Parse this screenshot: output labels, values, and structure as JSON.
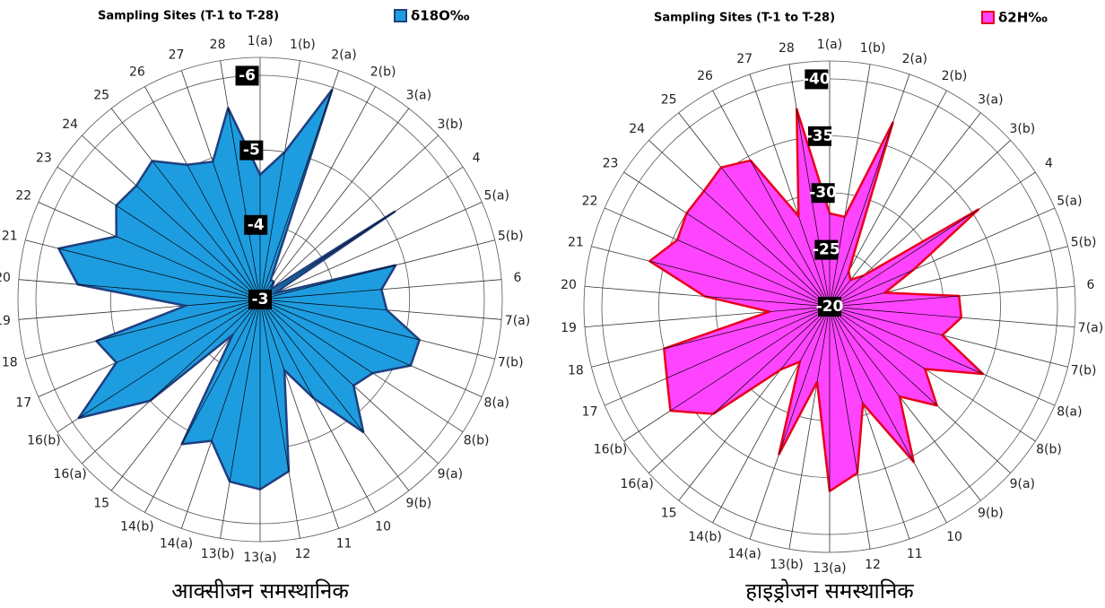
{
  "chart_data": [
    {
      "type": "radar",
      "title": "Sampling Sites (T-1 to T-28)",
      "caption": "आक्सीजन समस्थानिक",
      "categories": [
        "1(a)",
        "1(b)",
        "2(a)",
        "2(b)",
        "3(a)",
        "3(b)",
        "4",
        "5(a)",
        "5(b)",
        "6",
        "7(a)",
        "7(b)",
        "8(a)",
        "8(b)",
        "9(a)",
        "9(b)",
        "10",
        "11",
        "12",
        "13(a)",
        "13(b)",
        "14(a)",
        "14(b)",
        "15",
        "16(a)",
        "16(b)",
        "17",
        "18",
        "19",
        "20",
        "21",
        "22",
        "23",
        "24",
        "25",
        "26",
        "27",
        "28"
      ],
      "series": [
        {
          "name": "δ18O‰",
          "color": "#1e9ce0",
          "stroke": "#1f3f7f",
          "values": [
            -4.67,
            -5.0,
            -5.97,
            -3.3,
            -3.3,
            -3.2,
            -5.15,
            -3.2,
            -4.87,
            -4.63,
            -4.7,
            -5.2,
            -5.2,
            -4.8,
            -4.7,
            -5.25,
            -4.5,
            -4.0,
            -5.33,
            -5.54,
            -5.47,
            -5.0,
            -5.2,
            -3.6,
            -5.0,
            -5.9,
            -5.1,
            -5.26,
            -4.0,
            -5.45,
            -5.78,
            -5.1,
            -5.3,
            -5.25,
            -5.35,
            -5.05,
            -4.95,
            -5.6
          ]
        }
      ],
      "ylim": [
        -3,
        -6
      ],
      "yticks": [
        -3,
        -4,
        -5,
        -6
      ],
      "grid": true
    },
    {
      "type": "radar",
      "title": "Sampling Sites (T-1 to T-28)",
      "caption": "हाइड्रोजन समस्थानिक",
      "categories": [
        "1(a)",
        "1(b)",
        "2(a)",
        "2(b)",
        "3(a)",
        "3(b)",
        "4",
        "5(a)",
        "5(b)",
        "6",
        "7(a)",
        "7(b)",
        "8(a)",
        "8(b)",
        "9(a)",
        "9(b)",
        "10",
        "11",
        "12",
        "13(a)",
        "13(b)",
        "14(a)",
        "14(b)",
        "15",
        "16(a)",
        "16(b)",
        "17",
        "18",
        "19",
        "20",
        "21",
        "22",
        "23",
        "24",
        "25",
        "26",
        "27",
        "28"
      ],
      "series": [
        {
          "name": "δ2H‰",
          "color": "#ff44ff",
          "stroke": "#e8001c",
          "values": [
            -28.2,
            -28,
            -37.1,
            -23.5,
            -23,
            -24,
            -35.6,
            -28,
            -25,
            -31.4,
            -31.6,
            -30.2,
            -34.7,
            -30,
            -32.8,
            -30,
            -35.5,
            -29,
            -34.8,
            -36.2,
            -26.7,
            -33.7,
            -25.5,
            -27,
            -33.9,
            -36.7,
            -35.6,
            -35,
            -25.3,
            -31,
            -36.3,
            -34.6,
            -35,
            -35,
            -35.5,
            -34.6,
            -28.4,
            -37.6
          ]
        }
      ],
      "ylim": [
        -20,
        -40
      ],
      "yticks": [
        -20,
        -25,
        -30,
        -35,
        -40
      ],
      "grid": true
    }
  ]
}
